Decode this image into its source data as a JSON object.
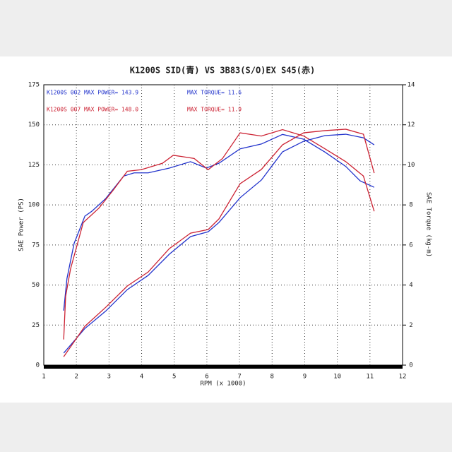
{
  "chart_data": {
    "type": "line",
    "title": "K1200S  SID(青)  VS  3B83(S/O)EX S45(赤)",
    "x_label": "RPM (x 1000)",
    "y_label": "SAE Power (PS)",
    "y2_label": "SAE Torque (kg-m)",
    "annotations": [
      {
        "text": "K1200S 002  MAX POWER= 143.9",
        "color": "#2233cc"
      },
      {
        "text": "K1200S 007  MAX POWER= 148.0",
        "color": "#cc2233"
      },
      {
        "text": "MAX TORQUE= 11.6",
        "color": "#2233cc"
      },
      {
        "text": "MAX TORQUE= 11.9",
        "color": "#cc2233"
      }
    ],
    "xlim": [
      1,
      12
    ],
    "xticks": [
      1,
      2,
      3,
      4,
      5,
      6,
      7,
      8,
      9,
      10,
      11,
      12
    ],
    "ylim": [
      0,
      175
    ],
    "yticks": [
      0,
      25,
      50,
      75,
      100,
      125,
      150,
      175
    ],
    "y2lim": [
      0,
      14
    ],
    "y2ticks": [
      0,
      2,
      4,
      6,
      8,
      10,
      12,
      14
    ],
    "grid": true,
    "series": [
      {
        "color": "#2233cc",
        "axis": "y",
        "x": [
          1.61,
          1.71,
          1.93,
          2.26,
          2.47,
          2.9,
          3.45,
          3.77,
          4.2,
          4.85,
          5.5,
          5.98,
          6.37,
          7.02,
          7.67,
          8.32,
          8.97,
          9.62,
          10.26,
          10.7,
          11.13
        ],
        "values": [
          34,
          54,
          76,
          93,
          96,
          104,
          118,
          120,
          120,
          123,
          127,
          123,
          126,
          135,
          138,
          144,
          141,
          133,
          124,
          115,
          111
        ]
      },
      {
        "color": "#cc2233",
        "axis": "y",
        "x": [
          1.61,
          1.67,
          1.82,
          2.21,
          2.69,
          3.12,
          3.56,
          3.99,
          4.64,
          4.97,
          5.61,
          6.04,
          6.48,
          7.02,
          7.67,
          8.32,
          8.97,
          9.62,
          10.26,
          10.8,
          11.13
        ],
        "values": [
          16,
          43,
          60,
          89,
          98,
          109,
          121,
          122,
          126,
          131,
          129,
          122,
          129,
          145,
          143,
          147,
          143,
          135,
          127,
          118,
          96
        ]
      },
      {
        "color": "#2233cc",
        "axis": "y2",
        "x": [
          1.61,
          2.26,
          2.9,
          3.56,
          4.2,
          4.85,
          5.5,
          6.04,
          6.37,
          7.02,
          7.67,
          8.32,
          8.97,
          9.62,
          10.26,
          10.8,
          11.13
        ],
        "values": [
          0.6,
          1.83,
          2.7,
          3.77,
          4.48,
          5.54,
          6.42,
          6.66,
          7.12,
          8.36,
          9.24,
          10.65,
          11.18,
          11.46,
          11.53,
          11.35,
          11.0
        ]
      },
      {
        "color": "#cc2233",
        "axis": "y2",
        "x": [
          1.61,
          2.26,
          2.9,
          3.56,
          4.2,
          4.85,
          5.5,
          6.04,
          6.37,
          7.02,
          7.67,
          8.32,
          8.97,
          9.62,
          10.26,
          10.8,
          11.13
        ],
        "values": [
          0.42,
          1.94,
          2.89,
          3.95,
          4.65,
          5.82,
          6.59,
          6.77,
          7.3,
          9.06,
          9.77,
          11.0,
          11.6,
          11.71,
          11.78,
          11.53,
          9.59
        ]
      }
    ]
  }
}
